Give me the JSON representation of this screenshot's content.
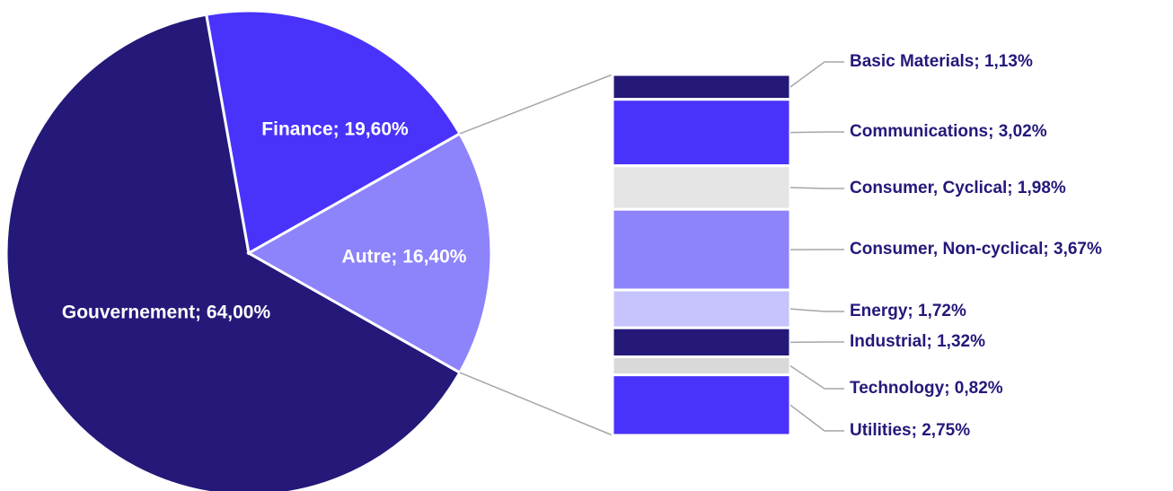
{
  "chart_data": {
    "type": "pie",
    "subtype": "bar-of-pie",
    "title": "",
    "slices": [
      {
        "name": "Gouvernement",
        "value": 64.0,
        "label": "Gouvernement; 64,00%",
        "color": "#241979"
      },
      {
        "name": "Finance",
        "value": 19.6,
        "label": "Finance; 19,60%",
        "color": "#4933fb"
      },
      {
        "name": "Autre",
        "value": 16.4,
        "label": "Autre; 16,40%",
        "color": "#8d83fb"
      }
    ],
    "breakdown_of": "Autre",
    "breakdown": [
      {
        "name": "Basic Materials",
        "value": 1.13,
        "label": "Basic Materials; 1,13%",
        "color": "#241979"
      },
      {
        "name": "Communications",
        "value": 3.02,
        "label": "Communications; 3,02%",
        "color": "#4933fb"
      },
      {
        "name": "Consumer, Cyclical",
        "value": 1.98,
        "label": "Consumer, Cyclical; 1,98%",
        "color": "#e5e5e5"
      },
      {
        "name": "Consumer, Non-cyclical",
        "value": 3.67,
        "label": "Consumer, Non-cyclical; 3,67%",
        "color": "#8d83fb"
      },
      {
        "name": "Energy",
        "value": 1.72,
        "label": "Energy; 1,72%",
        "color": "#c7c3fc"
      },
      {
        "name": "Industrial",
        "value": 1.32,
        "label": "Industrial; 1,32%",
        "color": "#241979"
      },
      {
        "name": "Technology",
        "value": 0.82,
        "label": "Technology; 0,82%",
        "color": "#d9d9d9"
      },
      {
        "name": "Utilities",
        "value": 2.75,
        "label": "Utilities; 2,75%",
        "color": "#4933fb"
      }
    ],
    "legend": "none",
    "label_color_inside": "#ffffff",
    "label_color_outside": "#23197a",
    "connector_color": "#a6a6a6"
  }
}
